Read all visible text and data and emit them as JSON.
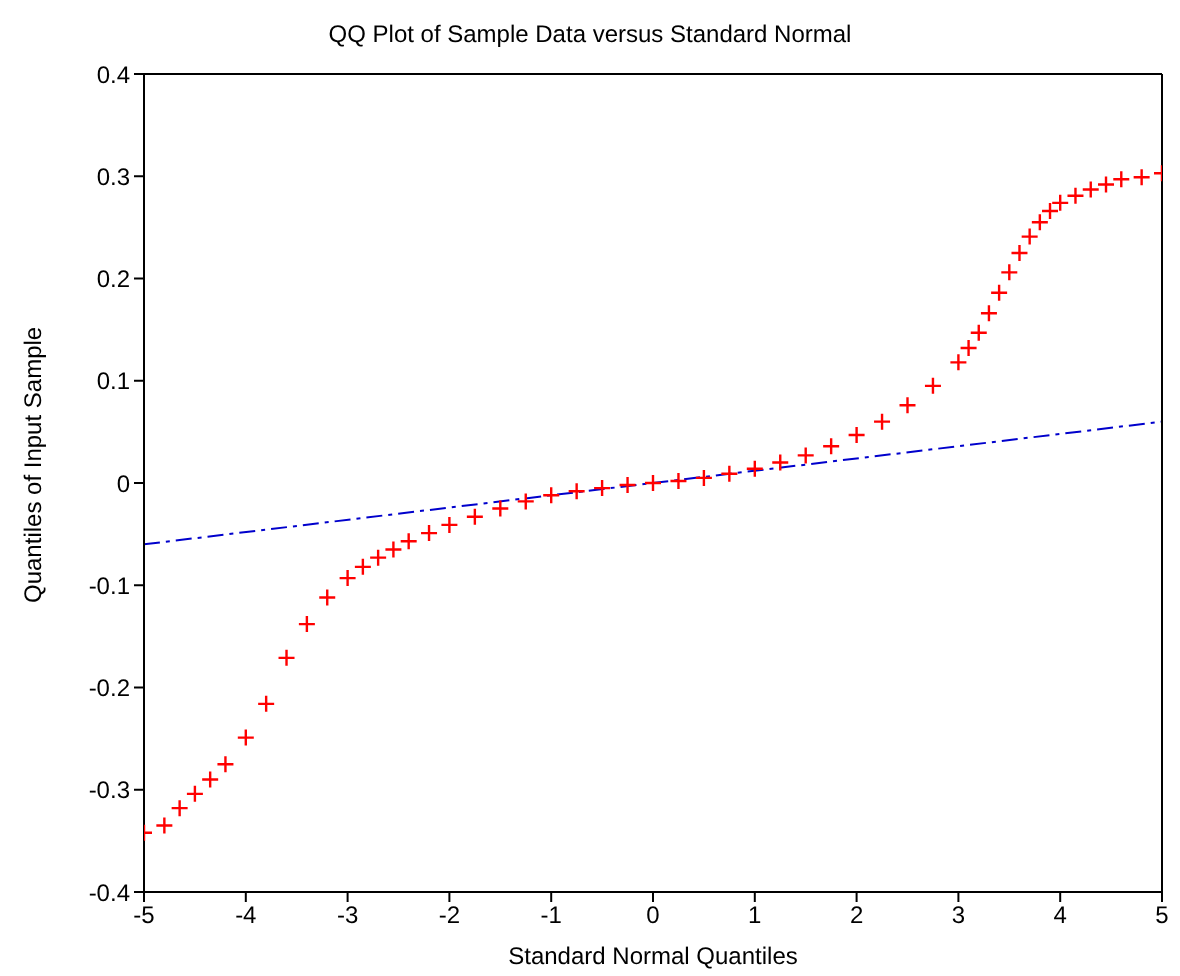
{
  "chart_data": {
    "type": "scatter",
    "title": "QQ Plot of Sample Data versus Standard Normal",
    "xlabel": "Standard Normal Quantiles",
    "ylabel": "Quantiles of Input Sample",
    "xlim": [
      -5,
      5
    ],
    "xticks": [
      -5,
      -4,
      -3,
      -2,
      -1,
      0,
      1,
      2,
      3,
      4,
      5
    ],
    "ylim": [
      -0.4,
      0.4
    ],
    "yticks": [
      -0.4,
      -0.3,
      -0.2,
      -0.1,
      0,
      0.1,
      0.2,
      0.3,
      0.4
    ],
    "grid": false,
    "legend": false,
    "series": [
      {
        "color": "#ff0000",
        "marker": "cross",
        "x": [
          -5,
          -4.8,
          -4.65,
          -4.5,
          -4.35,
          -4.2,
          -4.0,
          -3.8,
          -3.6,
          -3.4,
          -3.2,
          -3.0,
          -2.85,
          -2.7,
          -2.55,
          -2.4,
          -2.2,
          -2.0,
          -1.75,
          -1.5,
          -1.25,
          -1.0,
          -0.75,
          -0.5,
          -0.25,
          0,
          0.25,
          0.5,
          0.75,
          1.0,
          1.25,
          1.5,
          1.75,
          2.0,
          2.25,
          2.5,
          2.75,
          3.0,
          3.1,
          3.2,
          3.3,
          3.4,
          3.5,
          3.6,
          3.7,
          3.8,
          3.9,
          4.0,
          4.15,
          4.3,
          4.45,
          4.6,
          4.8,
          5.0
        ],
        "values": [
          -0.342,
          -0.335,
          -0.318,
          -0.304,
          -0.29,
          -0.275,
          -0.249,
          -0.216,
          -0.171,
          -0.138,
          -0.112,
          -0.093,
          -0.082,
          -0.073,
          -0.065,
          -0.057,
          -0.049,
          -0.041,
          -0.033,
          -0.025,
          -0.018,
          -0.012,
          -0.008,
          -0.005,
          -0.002,
          0,
          0.002,
          0.005,
          0.009,
          0.014,
          0.02,
          0.027,
          0.036,
          0.047,
          0.06,
          0.076,
          0.095,
          0.118,
          0.132,
          0.147,
          0.166,
          0.186,
          0.206,
          0.225,
          0.241,
          0.255,
          0.266,
          0.274,
          0.281,
          0.287,
          0.292,
          0.297,
          0.299,
          0.303
        ]
      },
      {
        "type": "line",
        "color": "#0000cc",
        "line_style": "dashed",
        "marker": "none",
        "x": [
          -5,
          5
        ],
        "values": [
          -0.06,
          0.06
        ]
      }
    ]
  }
}
